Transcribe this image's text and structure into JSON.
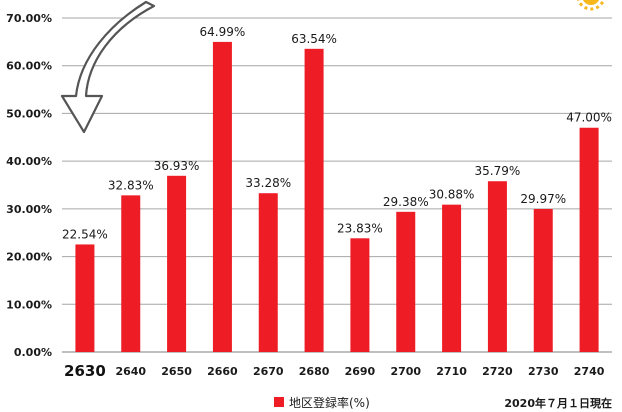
{
  "chart_data": {
    "type": "bar",
    "categories": [
      "2630",
      "2640",
      "2650",
      "2660",
      "2670",
      "2680",
      "2690",
      "2700",
      "2710",
      "2720",
      "2730",
      "2740"
    ],
    "series": [
      {
        "name": "地区登録率(%)",
        "values": [
          22.54,
          32.83,
          36.93,
          64.99,
          33.28,
          63.54,
          23.83,
          29.38,
          30.88,
          35.79,
          29.97,
          47.0
        ],
        "labels": [
          "22.54%",
          "32.83%",
          "36.93%",
          "64.99%",
          "33.28%",
          "63.54%",
          "23.83%",
          "29.38%",
          "30.88%",
          "35.79%",
          "29.97%",
          "47.00%"
        ]
      }
    ],
    "yticks": [
      "0.00%",
      "10.00%",
      "20.00%",
      "30.00%",
      "40.00%",
      "50.00%",
      "60.00%",
      "70.00%"
    ],
    "ylim": [
      0,
      70
    ],
    "grid": true,
    "legend": {
      "label": "地区登録率(%)",
      "placement": "bottom-center"
    },
    "annotation": "2020年７月１日現在",
    "highlighted_category": "2630",
    "colors": {
      "bar": "#ee1c25",
      "grid": "#a6a6a6",
      "arrow": "#555555",
      "corner_icon": "#f7b71d"
    }
  }
}
